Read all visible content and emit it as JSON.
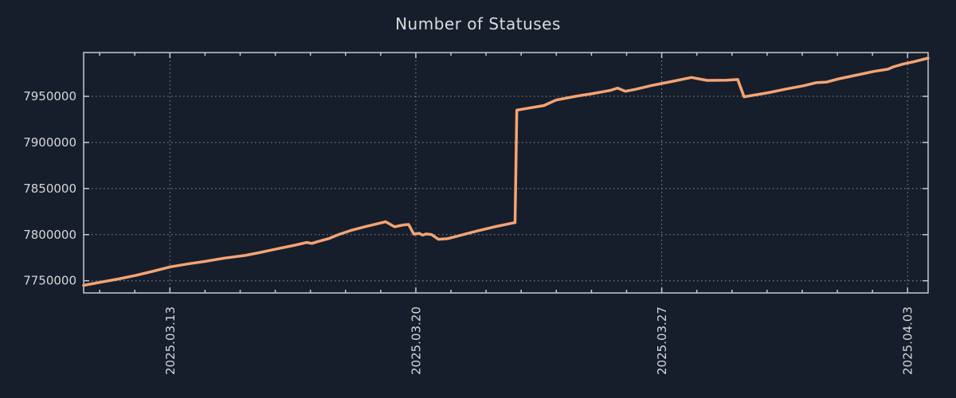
{
  "window": {
    "title": "Number of Statuses"
  },
  "chart_data": {
    "type": "line",
    "title": "Number of Statuses",
    "legend": false,
    "grid": true,
    "colors": {
      "background": "#171e2b",
      "line": "#f4a474",
      "axis": "#c6c9ce",
      "grid": "#8b919c",
      "text": "#d5d7da",
      "title_text": "#d9dbde"
    },
    "y_axis": {
      "tick_values": [
        7750000,
        7800000,
        7850000,
        7900000,
        7950000
      ],
      "tick_labels": [
        "7750000",
        "7800000",
        "7850000",
        "7900000",
        "7950000"
      ],
      "ylim": [
        7736800,
        7997500
      ]
    },
    "x_axis": {
      "unit": "days from 2025-03-10 ~12:00 (chart left edge)",
      "tick_labels": [
        "2025.03.13",
        "2025.03.20",
        "2025.03.27",
        "2025.04.03"
      ],
      "tick_positions": [
        2.456,
        9.456,
        16.456,
        23.456
      ],
      "minor_tick_step": 1,
      "minor_tick_phase": 0.456,
      "xlim": [
        0,
        24.04
      ]
    },
    "series": [
      {
        "name": "Number of Statuses",
        "color": "#f4a474",
        "points": [
          [
            0.0,
            7745000
          ],
          [
            0.5,
            7748500
          ],
          [
            1.0,
            7752000
          ],
          [
            1.5,
            7756000
          ],
          [
            2.0,
            7760500
          ],
          [
            2.46,
            7765000
          ],
          [
            3.0,
            7768500
          ],
          [
            3.46,
            7771000
          ],
          [
            4.0,
            7774500
          ],
          [
            4.6,
            7777500
          ],
          [
            5.0,
            7780500
          ],
          [
            5.5,
            7784500
          ],
          [
            6.0,
            7788500
          ],
          [
            6.35,
            7791500
          ],
          [
            6.5,
            7790500
          ],
          [
            6.65,
            7792300
          ],
          [
            7.0,
            7796000
          ],
          [
            7.25,
            7800000
          ],
          [
            7.6,
            7804500
          ],
          [
            8.0,
            7808500
          ],
          [
            8.6,
            7814000
          ],
          [
            8.85,
            7808500
          ],
          [
            9.1,
            7810500
          ],
          [
            9.25,
            7811000
          ],
          [
            9.4,
            7800500
          ],
          [
            9.55,
            7801500
          ],
          [
            9.65,
            7799500
          ],
          [
            9.75,
            7800800
          ],
          [
            9.9,
            7800200
          ],
          [
            10.1,
            7795000
          ],
          [
            10.35,
            7795600
          ],
          [
            10.7,
            7799000
          ],
          [
            11.2,
            7804000
          ],
          [
            11.7,
            7808500
          ],
          [
            12.2,
            7812500
          ],
          [
            12.28,
            7813000
          ],
          [
            12.33,
            7935000
          ],
          [
            12.6,
            7936800
          ],
          [
            13.1,
            7940000
          ],
          [
            13.45,
            7946000
          ],
          [
            14.0,
            7950000
          ],
          [
            14.5,
            7953000
          ],
          [
            15.0,
            7956500
          ],
          [
            15.2,
            7959000
          ],
          [
            15.42,
            7955500
          ],
          [
            15.7,
            7957500
          ],
          [
            16.2,
            7962000
          ],
          [
            16.8,
            7966500
          ],
          [
            17.3,
            7970500
          ],
          [
            17.75,
            7967300
          ],
          [
            18.3,
            7967500
          ],
          [
            18.62,
            7968200
          ],
          [
            18.8,
            7949500
          ],
          [
            19.5,
            7954000
          ],
          [
            20.0,
            7958000
          ],
          [
            20.5,
            7961500
          ],
          [
            20.85,
            7964800
          ],
          [
            21.15,
            7965500
          ],
          [
            21.5,
            7969000
          ],
          [
            22.0,
            7973000
          ],
          [
            22.5,
            7977000
          ],
          [
            22.9,
            7979500
          ],
          [
            23.05,
            7982000
          ],
          [
            23.35,
            7985200
          ],
          [
            23.6,
            7987200
          ],
          [
            24.04,
            7991500
          ]
        ]
      }
    ]
  }
}
